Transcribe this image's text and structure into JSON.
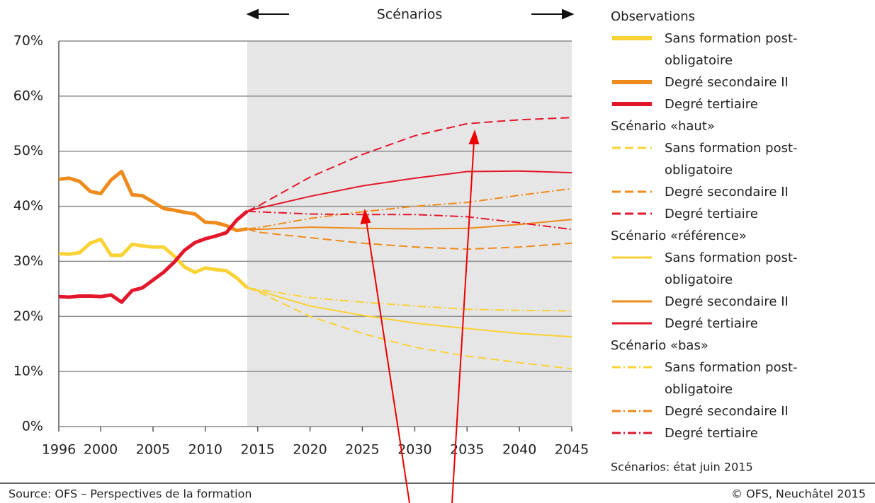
{
  "chart_data": {
    "type": "line",
    "header": "Scénarios",
    "note": "Scénarios: état juin 2015",
    "source": "Source: OFS – Perspectives de la formation",
    "copyright": "© OFS, Neuchâtel 2015",
    "xlim": [
      1996,
      2045
    ],
    "xticks": [
      1996,
      2000,
      2005,
      2010,
      2015,
      2020,
      2025,
      2030,
      2035,
      2040,
      2045
    ],
    "ylim": [
      0,
      70
    ],
    "yticks": [
      {
        "value": 0,
        "label": "0%"
      },
      {
        "value": 10,
        "label": "10%"
      },
      {
        "value": 20,
        "label": "20%"
      },
      {
        "value": 30,
        "label": "30%"
      },
      {
        "value": 40,
        "label": "40%"
      },
      {
        "value": 50,
        "label": "50%"
      },
      {
        "value": 60,
        "label": "60%"
      },
      {
        "value": 70,
        "label": "70%"
      }
    ],
    "grid": true,
    "shaded": true,
    "groups": [
      {
        "title": "Observations",
        "dash": "none",
        "width": 5,
        "series": [
          {
            "name": "Sans formation post-obligatoire",
            "color": "#f9d236",
            "x": [
              1996,
              1997,
              1998,
              1999,
              2000,
              2001,
              2002,
              2003,
              2004,
              2005,
              2006,
              2007,
              2008,
              2009,
              2010,
              2011,
              2012,
              2013,
              2014
            ],
            "values": [
              31.4,
              31.3,
              31.6,
              33.3,
              34.0,
              31.1,
              31.1,
              33.1,
              32.8,
              32.6,
              32.6,
              31.0,
              29.0,
              28.0,
              28.8,
              28.5,
              28.3,
              27.0,
              25.2
            ]
          },
          {
            "name": "Degré secondaire II",
            "color": "#ef8a1c",
            "x": [
              1996,
              1997,
              1998,
              1999,
              2000,
              2001,
              2002,
              2003,
              2004,
              2005,
              2006,
              2007,
              2008,
              2009,
              2010,
              2011,
              2012,
              2013,
              2014
            ],
            "values": [
              44.9,
              45.1,
              44.5,
              42.7,
              42.3,
              44.8,
              46.3,
              42.1,
              41.9,
              40.8,
              39.6,
              39.3,
              38.9,
              38.6,
              37.1,
              37.0,
              36.5,
              35.6,
              35.9
            ]
          },
          {
            "name": "Degré tertiaire",
            "color": "#e3172c",
            "x": [
              1996,
              1997,
              1998,
              1999,
              2000,
              2001,
              2002,
              2003,
              2004,
              2005,
              2006,
              2007,
              2008,
              2009,
              2010,
              2011,
              2012,
              2013,
              2014
            ],
            "values": [
              23.6,
              23.5,
              23.7,
              23.7,
              23.6,
              23.9,
              22.6,
              24.7,
              25.2,
              26.6,
              28.0,
              29.8,
              32.0,
              33.4,
              34.1,
              34.6,
              35.2,
              37.5,
              39.1
            ]
          }
        ]
      },
      {
        "title": "Scénario «haut»",
        "dash": "12,6",
        "width": 2,
        "series": [
          {
            "name": "Sans formation post-obligatoire",
            "color": "#f9d236",
            "x": [
              2014,
              2015,
              2020,
              2025,
              2030,
              2035,
              2040,
              2045
            ],
            "values": [
              25.2,
              24.5,
              20.0,
              16.9,
              14.4,
              12.8,
              11.6,
              10.5
            ]
          },
          {
            "name": "Degré secondaire II",
            "color": "#ef8a1c",
            "x": [
              2014,
              2015,
              2020,
              2025,
              2030,
              2035,
              2040,
              2045
            ],
            "values": [
              35.9,
              35.3,
              34.3,
              33.3,
              32.6,
              32.2,
              32.6,
              33.3
            ]
          },
          {
            "name": "Degré tertiaire",
            "color": "#e3172c",
            "x": [
              2014,
              2015,
              2020,
              2025,
              2030,
              2035,
              2040,
              2045
            ],
            "values": [
              39.1,
              40.0,
              45.3,
              49.4,
              52.8,
              55.0,
              55.7,
              56.1
            ]
          }
        ]
      },
      {
        "title": "Scénario «référence»",
        "dash": "none",
        "width": 2,
        "series": [
          {
            "name": "Sans formation post-obligatoire",
            "color": "#f9d236",
            "x": [
              2014,
              2015,
              2020,
              2025,
              2030,
              2035,
              2040,
              2045
            ],
            "values": [
              25.2,
              24.7,
              21.9,
              20.2,
              18.8,
              17.8,
              16.9,
              16.3
            ]
          },
          {
            "name": "Degré secondaire II",
            "color": "#ef8a1c",
            "x": [
              2014,
              2015,
              2020,
              2025,
              2030,
              2035,
              2040,
              2045
            ],
            "values": [
              35.9,
              35.8,
              36.2,
              36.0,
              35.9,
              36.0,
              36.7,
              37.6
            ]
          },
          {
            "name": "Degré tertiaire",
            "color": "#e3172c",
            "x": [
              2014,
              2015,
              2020,
              2025,
              2030,
              2035,
              2040,
              2045
            ],
            "values": [
              39.1,
              39.6,
              41.8,
              43.7,
              45.1,
              46.3,
              46.4,
              46.1
            ]
          }
        ]
      },
      {
        "title": "Scénario «bas»",
        "dash": "12,4,2,4",
        "width": 2,
        "series": [
          {
            "name": "Sans formation post-obligatoire",
            "color": "#f9d236",
            "x": [
              2014,
              2015,
              2020,
              2025,
              2030,
              2035,
              2040,
              2045
            ],
            "values": [
              25.2,
              24.9,
              23.4,
              22.6,
              21.9,
              21.3,
              21.1,
              21.0
            ]
          },
          {
            "name": "Degré secondaire II",
            "color": "#ef8a1c",
            "x": [
              2014,
              2015,
              2020,
              2025,
              2030,
              2035,
              2040,
              2045
            ],
            "values": [
              35.9,
              36.1,
              37.8,
              39.0,
              40.0,
              40.7,
              42.0,
              43.2
            ]
          },
          {
            "name": "Degré tertiaire",
            "color": "#e3172c",
            "x": [
              2014,
              2015,
              2020,
              2025,
              2030,
              2035,
              2040,
              2045
            ],
            "values": [
              39.1,
              39.0,
              38.6,
              38.5,
              38.5,
              38.1,
              37.0,
              35.8
            ]
          }
        ]
      }
    ]
  }
}
